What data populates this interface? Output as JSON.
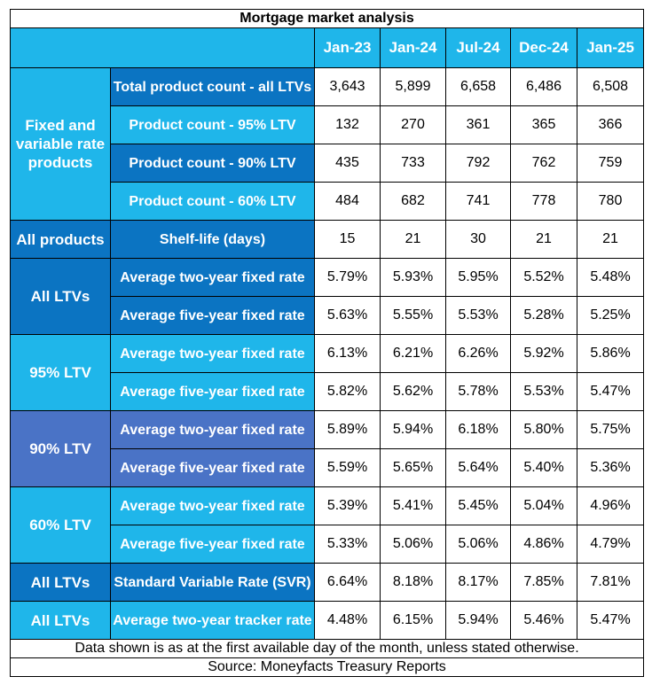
{
  "title": "Mortgage market analysis",
  "columns": [
    "Jan-23",
    "Jan-24",
    "Jul-24",
    "Dec-24",
    "Jan-25"
  ],
  "groups": [
    {
      "label": "Fixed and variable rate products",
      "rows": [
        {
          "label": "Total product count - all LTVs",
          "values": [
            "3,643",
            "5,899",
            "6,658",
            "6,486",
            "6,508"
          ]
        },
        {
          "label": "Product count - 95% LTV",
          "values": [
            "132",
            "270",
            "361",
            "365",
            "366"
          ]
        },
        {
          "label": "Product count - 90% LTV",
          "values": [
            "435",
            "733",
            "792",
            "762",
            "759"
          ]
        },
        {
          "label": "Product count - 60% LTV",
          "values": [
            "484",
            "682",
            "741",
            "778",
            "780"
          ]
        }
      ]
    },
    {
      "label": "All products",
      "rows": [
        {
          "label": "Shelf-life (days)",
          "values": [
            "15",
            "21",
            "30",
            "21",
            "21"
          ]
        }
      ]
    },
    {
      "label": "All LTVs",
      "rows": [
        {
          "label": "Average two-year fixed rate",
          "values": [
            "5.79%",
            "5.93%",
            "5.95%",
            "5.52%",
            "5.48%"
          ]
        },
        {
          "label": "Average five-year fixed rate",
          "values": [
            "5.63%",
            "5.55%",
            "5.53%",
            "5.28%",
            "5.25%"
          ]
        }
      ]
    },
    {
      "label": "95% LTV",
      "rows": [
        {
          "label": "Average two-year fixed rate",
          "values": [
            "6.13%",
            "6.21%",
            "6.26%",
            "5.92%",
            "5.86%"
          ]
        },
        {
          "label": "Average five-year fixed rate",
          "values": [
            "5.82%",
            "5.62%",
            "5.78%",
            "5.53%",
            "5.47%"
          ]
        }
      ]
    },
    {
      "label": "90% LTV",
      "rows": [
        {
          "label": "Average two-year fixed rate",
          "values": [
            "5.89%",
            "5.94%",
            "6.18%",
            "5.80%",
            "5.75%"
          ]
        },
        {
          "label": "Average five-year fixed rate",
          "values": [
            "5.59%",
            "5.65%",
            "5.64%",
            "5.40%",
            "5.36%"
          ]
        }
      ]
    },
    {
      "label": "60% LTV",
      "rows": [
        {
          "label": "Average two-year fixed rate",
          "values": [
            "5.39%",
            "5.41%",
            "5.45%",
            "5.04%",
            "4.96%"
          ]
        },
        {
          "label": "Average five-year fixed rate",
          "values": [
            "5.33%",
            "5.06%",
            "5.06%",
            "4.86%",
            "4.79%"
          ]
        }
      ]
    },
    {
      "label": "All LTVs",
      "rows": [
        {
          "label": "Standard Variable Rate (SVR)",
          "values": [
            "6.64%",
            "8.18%",
            "8.17%",
            "7.85%",
            "7.81%"
          ]
        }
      ]
    },
    {
      "label": "All LTVs",
      "rows": [
        {
          "label": "Average two-year tracker rate",
          "values": [
            "4.48%",
            "6.15%",
            "5.94%",
            "5.46%",
            "5.47%"
          ]
        }
      ]
    }
  ],
  "footnote": "Data shown is as at the first available day of the month, unless stated otherwise.",
  "source": "Source: Moneyfacts Treasury Reports",
  "colors": {
    "light_blue": "#1fb6ea",
    "dark_blue": "#0b74c2",
    "purple_blue": "#4a73c6"
  }
}
